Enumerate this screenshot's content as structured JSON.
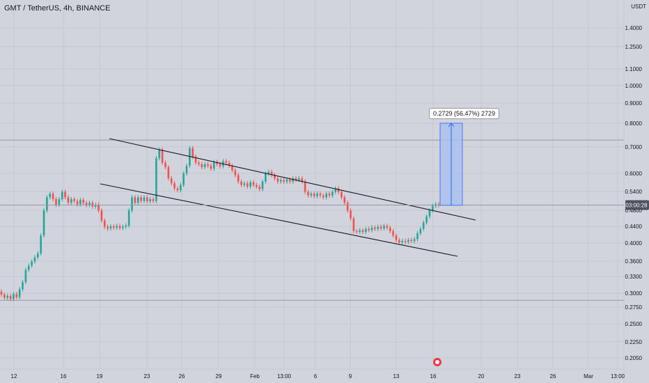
{
  "header": {
    "symbol_title": "GMT / TetherUS, 4h, BINANCE"
  },
  "colors": {
    "background": "#d1d4dc",
    "grid": "#c4c7cf",
    "bull": "#26a69a",
    "bear": "#ef5350",
    "trendline": "#131722",
    "measure_fill": "#a9bff0",
    "measure_stroke": "#2962ff",
    "price_line": "#9598a1",
    "price_label_bg": "#4e5160"
  },
  "chart_data": {
    "type": "candlestick",
    "title": "GMT / TetherUS, 4h, BINANCE",
    "y_unit": "USDT",
    "y_scale": "log",
    "y_ticks": [
      "1.4000",
      "1.2500",
      "1.1000",
      "1.0000",
      "0.9000",
      "0.8000",
      "0.7000",
      "0.6000",
      "0.5400",
      "0.4800",
      "0.4400",
      "0.4000",
      "0.3600",
      "0.3300",
      "0.3000",
      "0.2750",
      "0.2500",
      "0.2250",
      "0.2050"
    ],
    "x_ticks": [
      "12",
      "16",
      "19",
      "23",
      "26",
      "29",
      "Feb",
      "13:00",
      "6",
      "9",
      "13",
      "16",
      "20",
      "23",
      "26",
      "Mar",
      "13:00"
    ],
    "current_price_label": "03:00:28",
    "reference_levels": [
      0.69,
      0.288
    ],
    "measure_label": "0.2729 (56.47%) 2729",
    "measure_range": [
      0.4833,
      0.7562
    ],
    "series": [
      {
        "values": [
          [
            0.302,
            0.297
          ],
          [
            0.297,
            0.292
          ],
          [
            0.292,
            0.295
          ],
          [
            0.295,
            0.29
          ],
          [
            0.29,
            0.298
          ],
          [
            0.298,
            0.293
          ],
          [
            0.293,
            0.306
          ],
          [
            0.306,
            0.318
          ],
          [
            0.318,
            0.34
          ],
          [
            0.34,
            0.348
          ],
          [
            0.348,
            0.356
          ],
          [
            0.356,
            0.364
          ],
          [
            0.364,
            0.372
          ],
          [
            0.372,
            0.41
          ],
          [
            0.41,
            0.47
          ],
          [
            0.47,
            0.505
          ],
          [
            0.505,
            0.515
          ],
          [
            0.515,
            0.5
          ],
          [
            0.5,
            0.485
          ],
          [
            0.485,
            0.5
          ],
          [
            0.5,
            0.52
          ],
          [
            0.52,
            0.505
          ],
          [
            0.505,
            0.49
          ],
          [
            0.49,
            0.5
          ],
          [
            0.5,
            0.495
          ],
          [
            0.495,
            0.486
          ],
          [
            0.486,
            0.498
          ],
          [
            0.498,
            0.49
          ],
          [
            0.49,
            0.484
          ],
          [
            0.484,
            0.49
          ],
          [
            0.49,
            0.48
          ],
          [
            0.48,
            0.485
          ],
          [
            0.485,
            0.47
          ],
          [
            0.47,
            0.445
          ],
          [
            0.445,
            0.43
          ],
          [
            0.43,
            0.426
          ],
          [
            0.426,
            0.431
          ],
          [
            0.431,
            0.428
          ],
          [
            0.428,
            0.432
          ],
          [
            0.432,
            0.427
          ],
          [
            0.427,
            0.43
          ],
          [
            0.43,
            0.433
          ],
          [
            0.433,
            0.47
          ],
          [
            0.47,
            0.505
          ],
          [
            0.505,
            0.49
          ],
          [
            0.49,
            0.505
          ],
          [
            0.505,
            0.495
          ],
          [
            0.495,
            0.505
          ],
          [
            0.505,
            0.494
          ],
          [
            0.494,
            0.5
          ],
          [
            0.5,
            0.495
          ],
          [
            0.495,
            0.625
          ],
          [
            0.625,
            0.655
          ],
          [
            0.655,
            0.61
          ],
          [
            0.61,
            0.595
          ],
          [
            0.595,
            0.56
          ],
          [
            0.56,
            0.545
          ],
          [
            0.545,
            0.53
          ],
          [
            0.53,
            0.525
          ],
          [
            0.525,
            0.54
          ],
          [
            0.54,
            0.575
          ],
          [
            0.575,
            0.6
          ],
          [
            0.6,
            0.66
          ],
          [
            0.66,
            0.63
          ],
          [
            0.63,
            0.61
          ],
          [
            0.61,
            0.605
          ],
          [
            0.605,
            0.595
          ],
          [
            0.595,
            0.605
          ],
          [
            0.605,
            0.6
          ],
          [
            0.6,
            0.59
          ],
          [
            0.59,
            0.612
          ],
          [
            0.612,
            0.605
          ],
          [
            0.605,
            0.598
          ],
          [
            0.598,
            0.615
          ],
          [
            0.615,
            0.61
          ],
          [
            0.61,
            0.6
          ],
          [
            0.6,
            0.585
          ],
          [
            0.585,
            0.57
          ],
          [
            0.57,
            0.55
          ],
          [
            0.55,
            0.54
          ],
          [
            0.54,
            0.545
          ],
          [
            0.545,
            0.535
          ],
          [
            0.535,
            0.548
          ],
          [
            0.548,
            0.54
          ],
          [
            0.54,
            0.535
          ],
          [
            0.535,
            0.528
          ],
          [
            0.528,
            0.55
          ],
          [
            0.55,
            0.575
          ],
          [
            0.575,
            0.58
          ],
          [
            0.58,
            0.57
          ],
          [
            0.57,
            0.56
          ],
          [
            0.56,
            0.55
          ],
          [
            0.55,
            0.555
          ],
          [
            0.555,
            0.55
          ],
          [
            0.55,
            0.556
          ],
          [
            0.556,
            0.55
          ],
          [
            0.55,
            0.56
          ],
          [
            0.56,
            0.555
          ],
          [
            0.555,
            0.56
          ],
          [
            0.56,
            0.55
          ],
          [
            0.55,
            0.52
          ],
          [
            0.52,
            0.51
          ],
          [
            0.51,
            0.515
          ],
          [
            0.515,
            0.508
          ],
          [
            0.508,
            0.515
          ],
          [
            0.515,
            0.51
          ],
          [
            0.51,
            0.505
          ],
          [
            0.505,
            0.515
          ],
          [
            0.515,
            0.51
          ],
          [
            0.51,
            0.52
          ],
          [
            0.52,
            0.53
          ],
          [
            0.53,
            0.52
          ],
          [
            0.52,
            0.505
          ],
          [
            0.505,
            0.49
          ],
          [
            0.49,
            0.47
          ],
          [
            0.47,
            0.45
          ],
          [
            0.45,
            0.42
          ],
          [
            0.42,
            0.418
          ],
          [
            0.418,
            0.422
          ],
          [
            0.422,
            0.418
          ],
          [
            0.418,
            0.425
          ],
          [
            0.425,
            0.422
          ],
          [
            0.422,
            0.428
          ],
          [
            0.428,
            0.425
          ],
          [
            0.425,
            0.43
          ],
          [
            0.43,
            0.426
          ],
          [
            0.426,
            0.432
          ],
          [
            0.432,
            0.428
          ],
          [
            0.428,
            0.42
          ],
          [
            0.42,
            0.41
          ],
          [
            0.41,
            0.4
          ],
          [
            0.4,
            0.395
          ],
          [
            0.395,
            0.398
          ],
          [
            0.398,
            0.396
          ],
          [
            0.396,
            0.4
          ],
          [
            0.4,
            0.398
          ],
          [
            0.398,
            0.402
          ],
          [
            0.402,
            0.415
          ],
          [
            0.415,
            0.425
          ],
          [
            0.425,
            0.44
          ],
          [
            0.44,
            0.455
          ],
          [
            0.455,
            0.47
          ],
          [
            0.47,
            0.482
          ],
          [
            0.482,
            0.486
          ],
          [
            0.486,
            0.484
          ]
        ]
      }
    ]
  }
}
